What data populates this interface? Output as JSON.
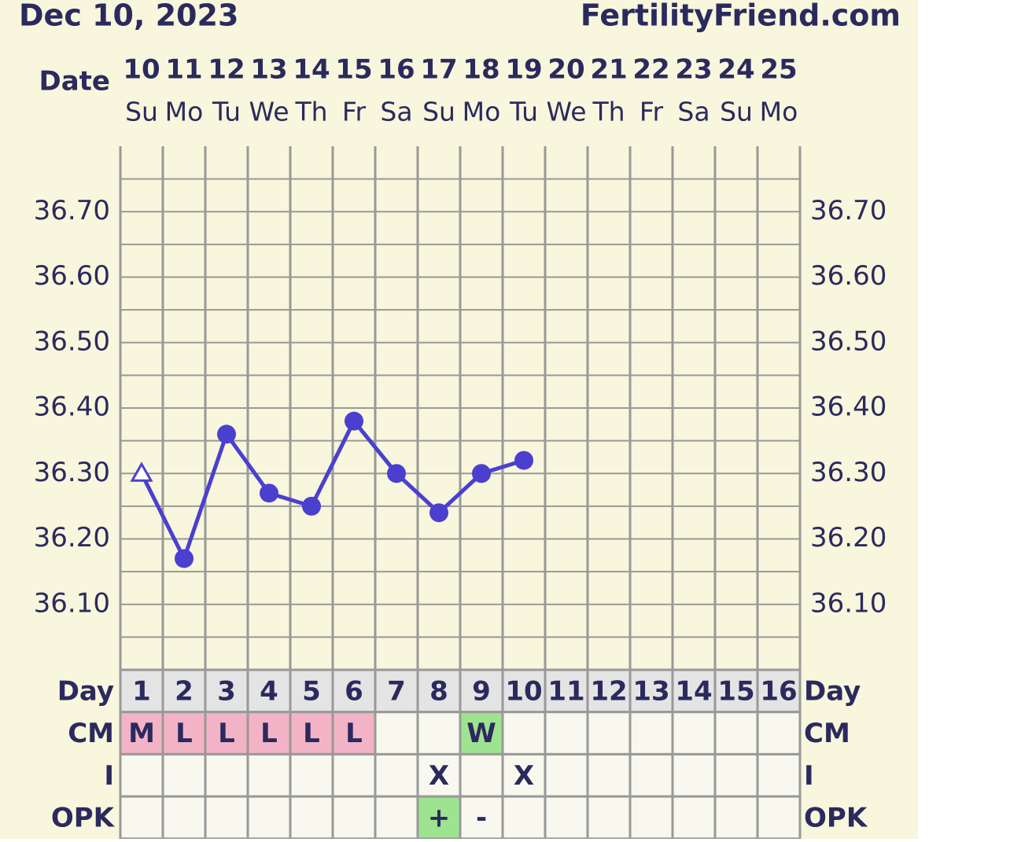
{
  "chart_data": {
    "type": "line",
    "title": "Dec 10, 2023",
    "site": "FertilityFriend.com",
    "date_label": "Date",
    "categories": [
      10,
      11,
      12,
      13,
      14,
      15,
      16,
      17,
      18,
      19,
      20,
      21,
      22,
      23,
      24,
      25
    ],
    "weekdays": [
      "Su",
      "Mo",
      "Tu",
      "We",
      "Th",
      "Fr",
      "Sa",
      "Su",
      "Mo",
      "Tu",
      "We",
      "Th",
      "Fr",
      "Sa",
      "Su",
      "Mo"
    ],
    "series": [
      {
        "color": "#4b3fd0",
        "values": [
          36.3,
          36.17,
          36.36,
          36.27,
          36.25,
          36.38,
          36.3,
          36.24,
          36.3,
          36.32,
          null,
          null,
          null,
          null,
          null,
          null
        ],
        "markers": [
          "triangle-open",
          "circle",
          "circle",
          "circle",
          "circle",
          "circle",
          "circle",
          "circle",
          "circle",
          "circle",
          null,
          null,
          null,
          null,
          null,
          null
        ]
      }
    ],
    "ylim": [
      36.0,
      36.8
    ],
    "yticks": [
      {
        "value": 36.1,
        "label": "36.10"
      },
      {
        "value": 36.2,
        "label": "36.20"
      },
      {
        "value": 36.3,
        "label": "36.30"
      },
      {
        "value": 36.4,
        "label": "36.40"
      },
      {
        "value": 36.5,
        "label": "36.50"
      },
      {
        "value": 36.6,
        "label": "36.60"
      },
      {
        "value": 36.7,
        "label": "36.70"
      }
    ],
    "yminor": [
      36.05,
      36.15,
      36.25,
      36.35,
      36.45,
      36.55,
      36.65,
      36.75
    ],
    "grid": true,
    "rows": [
      {
        "label": "Day",
        "values": [
          1,
          2,
          3,
          4,
          5,
          6,
          7,
          8,
          9,
          10,
          11,
          12,
          13,
          14,
          15,
          16
        ],
        "background": "#e4e4e4"
      },
      {
        "label": "CM",
        "values": [
          "M",
          "L",
          "L",
          "L",
          "L",
          "L",
          null,
          null,
          "W",
          null,
          null,
          null,
          null,
          null,
          null,
          null
        ],
        "colors": {
          "M": "#f3b3c6",
          "L": "#f3b3c6",
          "W": "#9ee38f"
        }
      },
      {
        "label": "I",
        "values": [
          null,
          null,
          null,
          null,
          null,
          null,
          null,
          "X",
          null,
          "X",
          null,
          null,
          null,
          null,
          null,
          null
        ],
        "colors": {}
      },
      {
        "label": "OPK",
        "values": [
          null,
          null,
          null,
          null,
          null,
          null,
          null,
          "+",
          "-",
          null,
          null,
          null,
          null,
          null,
          null,
          null
        ],
        "colors": {
          "+": "#9ee38f"
        }
      }
    ]
  }
}
